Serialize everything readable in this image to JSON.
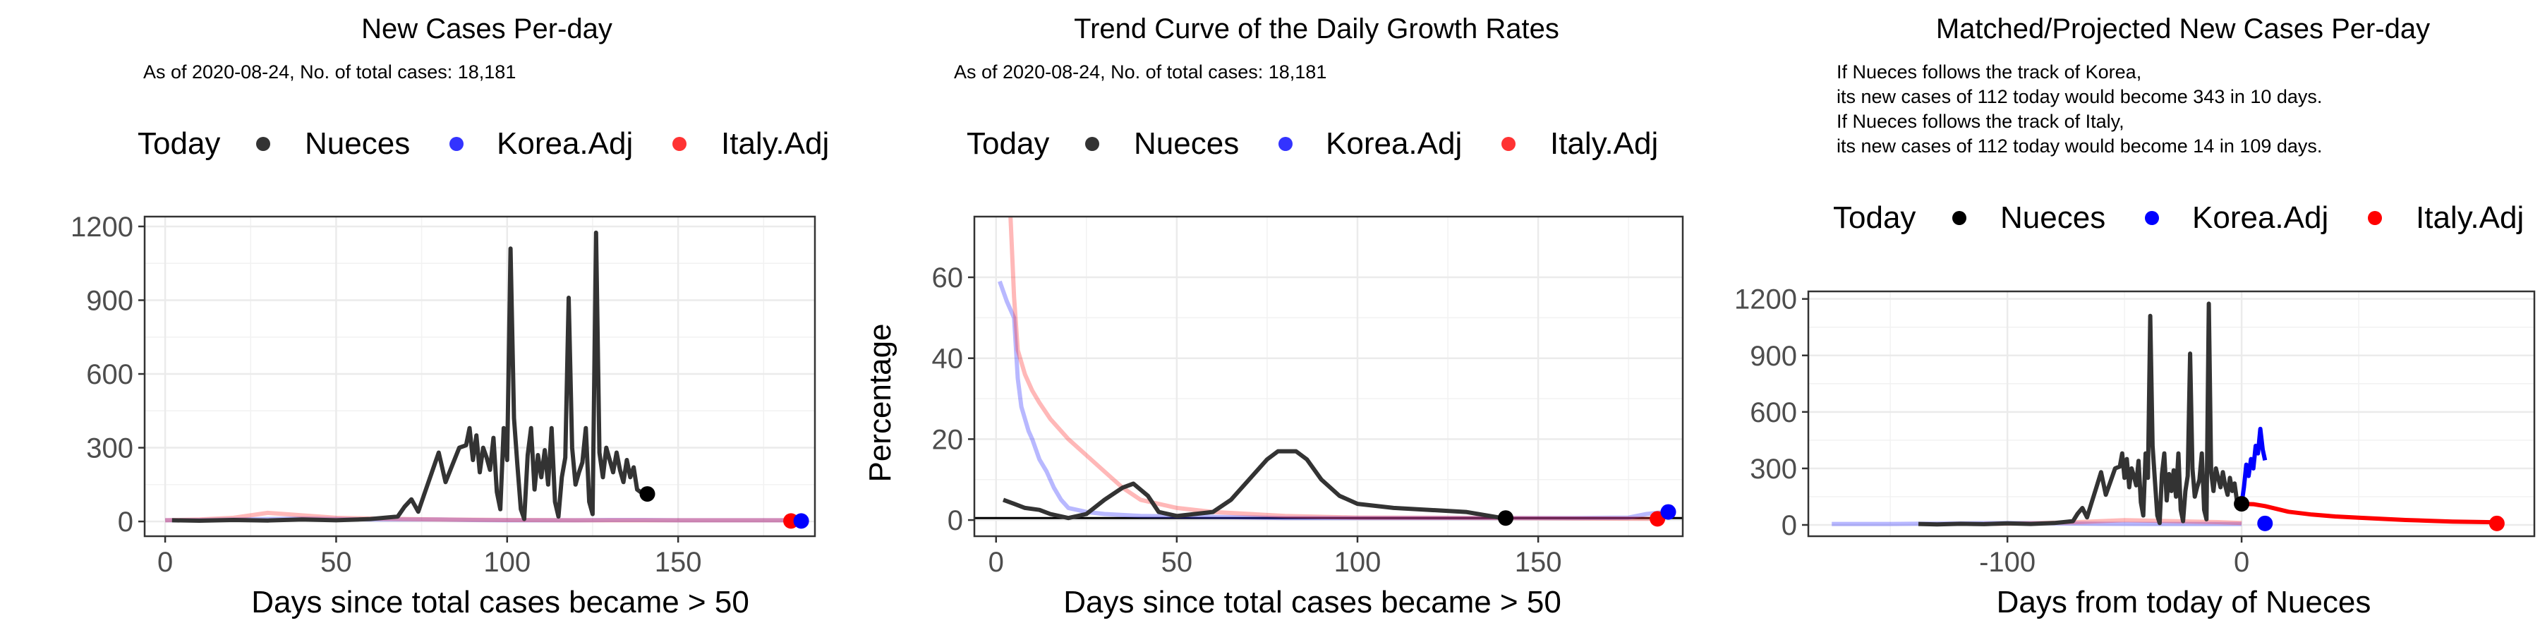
{
  "colors": {
    "nueces": "#333333",
    "korea": "#3333ff",
    "italy": "#ff3333",
    "grid": "#ebebeb",
    "panel_border": "#333333"
  },
  "legend": {
    "title": "Today",
    "items": [
      {
        "label": "Nueces",
        "color": "#333333"
      },
      {
        "label": "Korea.Adj",
        "color": "#3333ff"
      },
      {
        "label": "Italy.Adj",
        "color": "#ff3333"
      }
    ]
  },
  "chart_data": [
    {
      "type": "line",
      "title": "New Cases Per-day",
      "subtitle_lines": [
        "As of 2020-08-24, No. of total cases: 18,181"
      ],
      "xlabel": "Days since total cases became > 50",
      "ylabel": "",
      "xlim": [
        -6,
        190
      ],
      "ylim": [
        -60,
        1240
      ],
      "xticks": [
        0,
        50,
        100,
        150
      ],
      "yticks": [
        0,
        300,
        600,
        900,
        1200
      ],
      "ytick_labels": [
        "0",
        "300",
        "600",
        "900",
        "1200"
      ],
      "grid": true,
      "series": [
        {
          "name": "Korea.Adj",
          "color": "#3333ff",
          "alpha": 0.35,
          "x": [
            0,
            10,
            20,
            30,
            40,
            50,
            60,
            70,
            80,
            90,
            100,
            110,
            120,
            130,
            140,
            150,
            160,
            170,
            180,
            185
          ],
          "y": [
            5,
            6,
            8,
            10,
            12,
            10,
            8,
            8,
            8,
            6,
            5,
            5,
            5,
            6,
            6,
            5,
            5,
            5,
            5,
            5
          ]
        },
        {
          "name": "Italy.Adj",
          "color": "#ff3333",
          "alpha": 0.35,
          "x": [
            0,
            10,
            20,
            25,
            30,
            35,
            40,
            50,
            60,
            70,
            80,
            100,
            120,
            140,
            160,
            183
          ],
          "y": [
            5,
            8,
            15,
            25,
            35,
            30,
            25,
            15,
            12,
            10,
            8,
            6,
            5,
            5,
            5,
            5
          ]
        },
        {
          "name": "Nueces",
          "color": "#333333",
          "alpha": 1,
          "x": [
            2,
            10,
            20,
            30,
            40,
            50,
            60,
            68,
            70,
            72,
            74,
            76,
            78,
            80,
            82,
            84,
            86,
            88,
            89,
            90,
            91,
            92,
            93,
            94,
            95,
            96,
            97,
            98,
            99,
            100,
            101,
            102,
            103,
            104,
            105,
            106,
            107,
            108,
            109,
            110,
            111,
            112,
            113,
            114,
            115,
            116,
            117,
            118,
            119,
            120,
            121,
            122,
            123,
            124,
            125,
            126,
            127,
            128,
            129,
            130,
            131,
            132,
            133,
            134,
            135,
            136,
            137,
            138,
            139,
            140
          ],
          "y": [
            5,
            3,
            6,
            4,
            8,
            5,
            10,
            20,
            60,
            90,
            40,
            120,
            200,
            280,
            160,
            230,
            300,
            310,
            380,
            250,
            350,
            200,
            300,
            260,
            210,
            340,
            120,
            50,
            380,
            250,
            1110,
            420,
            230,
            50,
            10,
            270,
            380,
            130,
            270,
            180,
            290,
            150,
            380,
            80,
            20,
            180,
            260,
            910,
            300,
            150,
            200,
            240,
            380,
            80,
            30,
            1175,
            280,
            180,
            300,
            250,
            200,
            280,
            210,
            160,
            250,
            180,
            220,
            130,
            120,
            112
          ]
        }
      ],
      "points": [
        {
          "name": "Nueces",
          "x": 141,
          "y": 112,
          "color": "#000000"
        },
        {
          "name": "Italy.Adj",
          "x": 183,
          "y": 2,
          "color": "#ff0000"
        },
        {
          "name": "Korea.Adj",
          "x": 186,
          "y": 2,
          "color": "#0000ff"
        }
      ]
    },
    {
      "type": "line",
      "title": "Trend Curve of the Daily Growth Rates",
      "subtitle_lines": [
        "As of 2020-08-24, No. of total cases: 18,181"
      ],
      "xlabel": "Days since total cases became > 50",
      "ylabel": "Percentage",
      "xlim": [
        -6,
        190
      ],
      "ylim": [
        -4,
        75
      ],
      "xticks": [
        0,
        50,
        100,
        150
      ],
      "yticks": [
        0,
        20,
        40,
        60
      ],
      "ytick_labels": [
        "0",
        "20",
        "40",
        "60"
      ],
      "grid": true,
      "hline": 0.5,
      "series": [
        {
          "name": "Korea.Adj",
          "color": "#3333ff",
          "alpha": 0.35,
          "x": [
            1,
            3,
            5,
            6,
            7,
            8,
            9,
            10,
            12,
            14,
            16,
            18,
            20,
            25,
            30,
            40,
            60,
            80,
            100,
            120,
            140,
            160,
            175,
            180,
            185
          ],
          "y": [
            59,
            54,
            50,
            35,
            28,
            25,
            22,
            20,
            15,
            12,
            8,
            5,
            3,
            2,
            1.5,
            1,
            0.8,
            0.5,
            0.5,
            0.5,
            0.5,
            0.5,
            0.6,
            1.5,
            2
          ]
        },
        {
          "name": "Italy.Adj",
          "color": "#ff3333",
          "alpha": 0.35,
          "x": [
            4,
            5,
            6,
            8,
            10,
            12,
            15,
            20,
            25,
            30,
            35,
            40,
            50,
            60,
            80,
            100,
            140,
            182
          ],
          "y": [
            75,
            55,
            42,
            36,
            32,
            29,
            25,
            20,
            16,
            12,
            8,
            5,
            3,
            2,
            1,
            0.6,
            0.5,
            0.3
          ]
        },
        {
          "name": "Nueces",
          "color": "#333333",
          "alpha": 1,
          "x": [
            2,
            5,
            8,
            12,
            15,
            20,
            25,
            30,
            35,
            38,
            42,
            45,
            50,
            55,
            60,
            65,
            70,
            75,
            78,
            80,
            83,
            86,
            90,
            95,
            100,
            110,
            120,
            130,
            140
          ],
          "y": [
            5,
            4,
            3,
            2.5,
            1.5,
            0.5,
            1.5,
            5,
            8,
            9,
            6,
            2,
            1,
            1.5,
            2,
            5,
            10,
            15,
            17,
            17,
            17,
            15,
            10,
            6,
            4,
            3,
            2.5,
            2,
            0.5
          ]
        }
      ],
      "points": [
        {
          "name": "Nueces",
          "x": 141,
          "y": 0.5,
          "color": "#000000"
        },
        {
          "name": "Italy.Adj",
          "x": 183,
          "y": 0.3,
          "color": "#ff0000"
        },
        {
          "name": "Korea.Adj",
          "x": 186,
          "y": 2,
          "color": "#0000ff"
        }
      ]
    },
    {
      "type": "line",
      "title": "Matched/Projected New Cases Per-day",
      "subtitle_lines": [
        "If Nueces follows the track of Korea,",
        "its new cases of 112 today would become 343 in 10 days.",
        "If Nueces follows the track of Italy,",
        "its new cases of 112 today would become 14 in 109 days."
      ],
      "xlabel": "Days from today of Nueces",
      "ylabel": "",
      "xlim": [
        -185,
        125
      ],
      "ylim": [
        -60,
        1240
      ],
      "xticks": [
        -100,
        0
      ],
      "yticks": [
        0,
        300,
        600,
        900,
        1200
      ],
      "ytick_labels": [
        "0",
        "300",
        "600",
        "900",
        "1200"
      ],
      "grid": true,
      "series": [
        {
          "name": "Korea.Adj-history",
          "color": "#3333ff",
          "alpha": 0.35,
          "x": [
            -175,
            -150,
            -120,
            -100,
            -80,
            -60,
            -40,
            -20,
            0
          ],
          "y": [
            5,
            5,
            8,
            10,
            8,
            6,
            5,
            5,
            5
          ]
        },
        {
          "name": "Italy.Adj-history",
          "color": "#ff3333",
          "alpha": 0.35,
          "x": [
            -110,
            -90,
            -70,
            -50,
            -30,
            -10,
            0
          ],
          "y": [
            5,
            8,
            15,
            25,
            20,
            15,
            10
          ]
        },
        {
          "name": "Nueces",
          "color": "#333333",
          "alpha": 1,
          "x": [
            -138,
            -130,
            -120,
            -110,
            -100,
            -90,
            -80,
            -72,
            -70,
            -68,
            -66,
            -64,
            -62,
            -60,
            -58,
            -56,
            -54,
            -52,
            -51,
            -50,
            -49,
            -48,
            -47,
            -46,
            -45,
            -44,
            -43,
            -42,
            -41,
            -40,
            -39,
            -38,
            -37,
            -36,
            -35,
            -34,
            -33,
            -32,
            -31,
            -30,
            -29,
            -28,
            -27,
            -26,
            -25,
            -24,
            -23,
            -22,
            -21,
            -20,
            -19,
            -18,
            -17,
            -16,
            -15,
            -14,
            -13,
            -12,
            -11,
            -10,
            -9,
            -8,
            -7,
            -6,
            -5,
            -4,
            -3,
            -2,
            -1,
            0
          ],
          "y": [
            5,
            3,
            6,
            4,
            8,
            5,
            10,
            20,
            60,
            90,
            40,
            120,
            200,
            280,
            160,
            230,
            300,
            310,
            380,
            250,
            350,
            200,
            300,
            260,
            210,
            340,
            120,
            50,
            380,
            250,
            1110,
            420,
            230,
            50,
            10,
            270,
            380,
            130,
            270,
            180,
            290,
            150,
            380,
            80,
            20,
            180,
            260,
            910,
            300,
            150,
            200,
            240,
            380,
            80,
            30,
            1175,
            280,
            180,
            300,
            250,
            200,
            280,
            210,
            160,
            250,
            180,
            220,
            130,
            120,
            112
          ]
        },
        {
          "name": "Korea.Adj-projection",
          "color": "#0000ff",
          "alpha": 1,
          "x": [
            0,
            1,
            2,
            3,
            4,
            5,
            6,
            7,
            8,
            9,
            10
          ],
          "y": [
            112,
            200,
            320,
            260,
            350,
            300,
            420,
            380,
            510,
            400,
            343
          ]
        },
        {
          "name": "Italy.Adj-projection",
          "color": "#ff0000",
          "alpha": 1,
          "x": [
            0,
            5,
            10,
            15,
            20,
            30,
            40,
            50,
            60,
            70,
            80,
            90,
            100,
            109
          ],
          "y": [
            112,
            110,
            100,
            85,
            70,
            55,
            45,
            38,
            32,
            26,
            22,
            18,
            16,
            14
          ]
        }
      ],
      "points": [
        {
          "name": "Nueces",
          "x": 0,
          "y": 112,
          "color": "#000000"
        },
        {
          "name": "Korea.Adj",
          "x": 10,
          "y": 8,
          "color": "#0000ff"
        },
        {
          "name": "Italy.Adj",
          "x": 109,
          "y": 8,
          "color": "#ff0000"
        }
      ]
    }
  ]
}
